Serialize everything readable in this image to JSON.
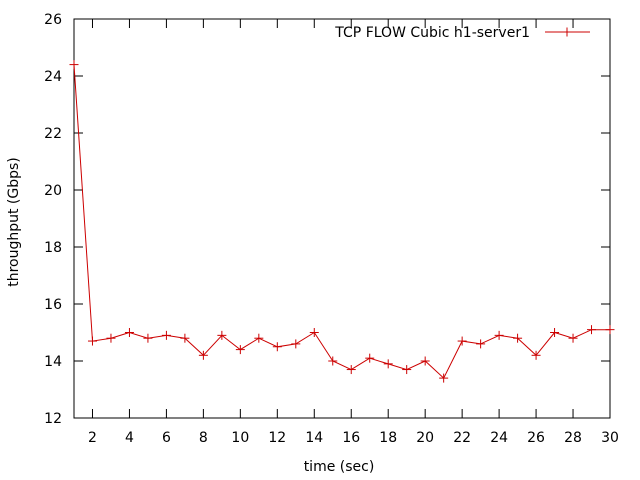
{
  "chart_data": {
    "type": "line",
    "title": "",
    "xlabel": "time (sec)",
    "ylabel": "throughput (Gbps)",
    "xlim": [
      1,
      30
    ],
    "ylim": [
      12,
      26
    ],
    "xticks": [
      2,
      4,
      6,
      8,
      10,
      12,
      14,
      16,
      18,
      20,
      22,
      24,
      26,
      28,
      30
    ],
    "yticks": [
      12,
      14,
      16,
      18,
      20,
      22,
      24,
      26
    ],
    "xtick_labels": [
      "2",
      "4",
      "6",
      "8",
      "10",
      "12",
      "14",
      "16",
      "18",
      "20",
      "22",
      "24",
      "26",
      "28",
      "30"
    ],
    "ytick_labels": [
      "12",
      "14",
      "16",
      "18",
      "20",
      "22",
      "24",
      "26"
    ],
    "grid": false,
    "legend_position": "top-right",
    "marker": "plus",
    "series": [
      {
        "name": "TCP FLOW Cubic h1-server1",
        "color": "#cc0000",
        "x": [
          1,
          2,
          3,
          4,
          5,
          6,
          7,
          8,
          9,
          10,
          11,
          12,
          13,
          14,
          15,
          16,
          17,
          18,
          19,
          20,
          21,
          22,
          23,
          24,
          25,
          26,
          27,
          28,
          29,
          30
        ],
        "y": [
          24.4,
          14.7,
          14.8,
          15.0,
          14.8,
          14.9,
          14.8,
          14.2,
          14.9,
          14.4,
          14.8,
          14.5,
          14.6,
          15.0,
          14.0,
          13.7,
          14.1,
          13.9,
          13.7,
          14.0,
          13.4,
          14.7,
          14.6,
          14.9,
          14.8,
          14.2,
          15.0,
          14.8,
          15.1,
          15.1
        ]
      }
    ]
  }
}
